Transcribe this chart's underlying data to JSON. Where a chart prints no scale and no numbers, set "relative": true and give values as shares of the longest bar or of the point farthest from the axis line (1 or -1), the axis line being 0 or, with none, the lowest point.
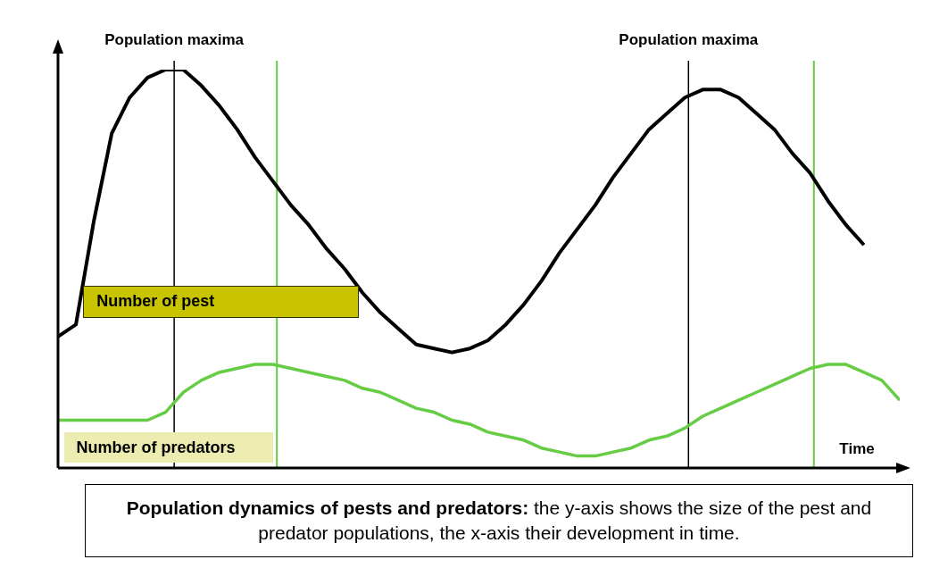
{
  "chart_data": {
    "type": "line",
    "title": "Population dynamics of pests and predators:",
    "subtitle": "the y-axis shows the size of the pest and predator populations, the x-axis their development in time.",
    "xlabel": "Time",
    "relative": true,
    "line_style": "solid",
    "annotations": [
      "Population maxima",
      "Population maxima"
    ],
    "categories": [
      null,
      null,
      null,
      null,
      null,
      null,
      null,
      null,
      null,
      null,
      null,
      null,
      null,
      null,
      null,
      null,
      null,
      null,
      null,
      null,
      null,
      null,
      null,
      null,
      null,
      null,
      null,
      null,
      null,
      null,
      null,
      null,
      null,
      null,
      null,
      null,
      null,
      null,
      null,
      null,
      null,
      null,
      null,
      null,
      null,
      null,
      null,
      null
    ],
    "series": [
      {
        "name": "Number of pest",
        "color": "#000000",
        "values": [
          0.33,
          0.36,
          0.62,
          0.84,
          0.93,
          0.98,
          1.0,
          1.0,
          0.96,
          0.91,
          0.85,
          0.78,
          0.72,
          0.66,
          0.61,
          0.55,
          0.5,
          0.44,
          0.39,
          0.35,
          0.31,
          0.3,
          0.29,
          0.3,
          0.32,
          0.36,
          0.41,
          0.47,
          0.54,
          0.6,
          0.66,
          0.73,
          0.79,
          0.85,
          0.89,
          0.93,
          0.95,
          0.95,
          0.93,
          0.89,
          0.85,
          0.79,
          0.74,
          0.67,
          0.61,
          0.56,
          null,
          null
        ]
      },
      {
        "name": "Number of predators",
        "color": "#66cc44",
        "values": [
          0.12,
          0.12,
          0.12,
          0.12,
          0.12,
          0.12,
          0.14,
          0.19,
          0.22,
          0.24,
          0.25,
          0.26,
          0.26,
          0.25,
          0.24,
          0.23,
          0.22,
          0.2,
          0.19,
          0.17,
          0.15,
          0.14,
          0.12,
          0.11,
          0.09,
          0.08,
          0.07,
          0.05,
          0.04,
          0.03,
          0.03,
          0.04,
          0.05,
          0.07,
          0.08,
          0.1,
          0.13,
          0.15,
          0.17,
          0.19,
          0.21,
          0.23,
          0.25,
          0.26,
          0.26,
          0.24,
          0.22,
          0.17
        ]
      }
    ]
  }
}
